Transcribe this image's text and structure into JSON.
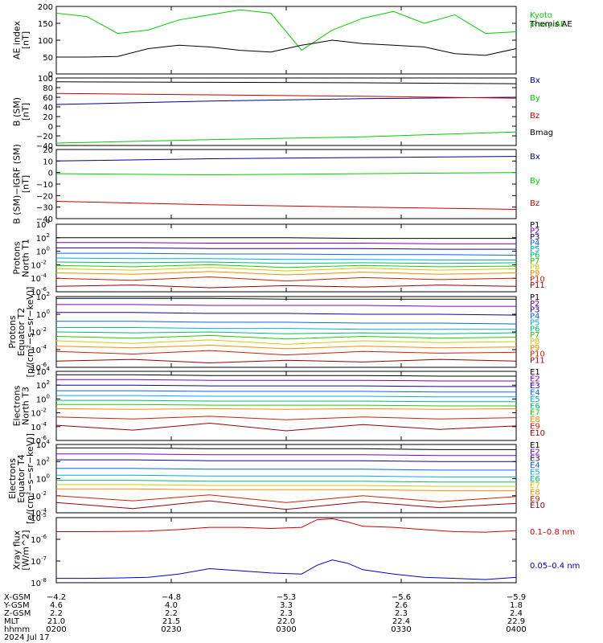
{
  "chart_data": [
    {
      "panel": "ae-index",
      "type": "line",
      "ylabel": [
        "AE index",
        "[nT]"
      ],
      "ylim": [
        0,
        200
      ],
      "yticks": [
        0,
        50,
        100,
        150,
        200
      ],
      "x": [
        0,
        4,
        8,
        12,
        16,
        20,
        24,
        28,
        32,
        36,
        40,
        44,
        48,
        52,
        56,
        60
      ],
      "series": [
        {
          "name": "Kyoto proxy AE",
          "color": "#00cc00",
          "values": [
            180,
            170,
            120,
            130,
            160,
            175,
            190,
            180,
            70,
            130,
            165,
            185,
            150,
            175,
            120,
            125
          ]
        },
        {
          "name": "Themis AE",
          "color": "#000000",
          "values": [
            50,
            50,
            52,
            75,
            85,
            80,
            70,
            65,
            85,
            100,
            90,
            85,
            80,
            60,
            55,
            75
          ]
        }
      ]
    },
    {
      "panel": "b-sm",
      "type": "line",
      "ylabel": [
        "B (SM)",
        "[nT]"
      ],
      "ylim": [
        -40,
        100
      ],
      "yticks": [
        -40,
        -20,
        0,
        20,
        40,
        60,
        80,
        100
      ],
      "ytick_labels": [
        "−40",
        "−20",
        "0",
        "20",
        "40",
        "60",
        "80",
        "100"
      ],
      "x": [
        0,
        20,
        40,
        60
      ],
      "series": [
        {
          "name": "Bx",
          "color": "#00008b",
          "values": [
            45,
            52,
            57,
            60
          ]
        },
        {
          "name": "By",
          "color": "#00cc00",
          "values": [
            -35,
            -28,
            -22,
            -12
          ]
        },
        {
          "name": "Bz",
          "color": "#cc0000",
          "values": [
            68,
            65,
            62,
            58
          ]
        },
        {
          "name": "Bmag",
          "color": "#000000",
          "values": [
            92,
            91,
            90,
            88
          ]
        }
      ]
    },
    {
      "panel": "b-sm-igrf",
      "type": "line",
      "ylabel": [
        "B (SM)−IGRF (SM)",
        "[nT]"
      ],
      "ylim": [
        -40,
        20
      ],
      "yticks": [
        -40,
        -30,
        -20,
        -10,
        0,
        10,
        20
      ],
      "ytick_labels": [
        "−40",
        "−30",
        "−20",
        "−10",
        "0",
        "10",
        "20"
      ],
      "x": [
        0,
        20,
        40,
        60
      ],
      "series": [
        {
          "name": "Bx",
          "color": "#00008b",
          "values": [
            10,
            12,
            13,
            14
          ]
        },
        {
          "name": "By",
          "color": "#00cc00",
          "values": [
            -1,
            -2,
            -1,
            0
          ]
        },
        {
          "name": "Bz",
          "color": "#cc0000",
          "values": [
            -25,
            -28,
            -30,
            -32
          ]
        }
      ]
    },
    {
      "panel": "protons-north-t1",
      "type": "line",
      "ylabel": [
        "Protons",
        "North T1"
      ],
      "yscale": "log",
      "ylim": [
        -6,
        4
      ],
      "yticks": [
        -6,
        -4,
        -2,
        0,
        2,
        4
      ],
      "x": [
        0,
        10,
        20,
        30,
        40,
        50,
        60
      ],
      "series": [
        {
          "name": "P1",
          "color": "#000000",
          "values": [
            2.0,
            2.0,
            2.0,
            2.0,
            1.9,
            1.9,
            1.9
          ]
        },
        {
          "name": "P2",
          "color": "#7f00bf",
          "values": [
            1.3,
            1.3,
            1.2,
            1.2,
            1.2,
            1.1,
            1.1
          ]
        },
        {
          "name": "P3",
          "color": "#1a0099",
          "values": [
            0.5,
            0.5,
            0.4,
            0.4,
            0.4,
            0.3,
            0.3
          ]
        },
        {
          "name": "P4",
          "color": "#0066ff",
          "values": [
            -0.3,
            -0.3,
            -0.4,
            -0.4,
            -0.5,
            -0.5,
            -0.6
          ]
        },
        {
          "name": "P5",
          "color": "#00aaee",
          "values": [
            -1.0,
            -1.1,
            -1.1,
            -1.2,
            -1.2,
            -1.3,
            -1.3
          ]
        },
        {
          "name": "P6",
          "color": "#00bb77",
          "values": [
            -1.6,
            -1.7,
            -1.6,
            -1.8,
            -1.7,
            -1.8,
            -1.7
          ]
        },
        {
          "name": "P7",
          "color": "#22cc00",
          "values": [
            -2.1,
            -2.3,
            -2.0,
            -2.4,
            -2.1,
            -2.3,
            -2.2
          ]
        },
        {
          "name": "P8",
          "color": "#cccc00",
          "values": [
            -2.6,
            -2.8,
            -2.4,
            -2.9,
            -2.5,
            -2.8,
            -2.6
          ]
        },
        {
          "name": "P9",
          "color": "#ff8800",
          "values": [
            -3.2,
            -3.4,
            -3.0,
            -3.5,
            -3.1,
            -3.4,
            -3.2
          ]
        },
        {
          "name": "P10",
          "color": "#cc2200",
          "values": [
            -4.0,
            -4.3,
            -3.8,
            -4.4,
            -3.9,
            -4.2,
            -4.0
          ]
        },
        {
          "name": "P11",
          "color": "#990000",
          "values": [
            -5.2,
            -5.0,
            -5.4,
            -5.1,
            -5.3,
            -5.0,
            -5.2
          ]
        }
      ]
    },
    {
      "panel": "protons-equator-t2",
      "type": "line",
      "ylabel": [
        "Protons",
        "Equator T2",
        "[p/(cm²−s−sr−keV)]"
      ],
      "yscale": "log",
      "ylim": [
        -6,
        2
      ],
      "yticks": [
        -6,
        -4,
        -2,
        0,
        2
      ],
      "x": [
        0,
        10,
        20,
        30,
        40,
        50,
        60
      ],
      "series": [
        {
          "name": "P1",
          "color": "#000000",
          "values": [
            1.8,
            1.8,
            1.8,
            1.7,
            1.7,
            1.7,
            1.7
          ]
        },
        {
          "name": "P2",
          "color": "#7f00bf",
          "values": [
            1.1,
            1.1,
            1.0,
            1.0,
            1.0,
            0.9,
            0.9
          ]
        },
        {
          "name": "P3",
          "color": "#1a0099",
          "values": [
            0.2,
            0.2,
            0.1,
            0.1,
            0.0,
            0.0,
            -0.1
          ]
        },
        {
          "name": "P4",
          "color": "#0066ff",
          "values": [
            -0.8,
            -0.8,
            -0.9,
            -0.9,
            -1.0,
            -1.0,
            -1.1
          ]
        },
        {
          "name": "P5",
          "color": "#00aaee",
          "values": [
            -1.5,
            -1.5,
            -1.6,
            -1.6,
            -1.7,
            -1.7,
            -1.7
          ]
        },
        {
          "name": "P6",
          "color": "#00bb77",
          "values": [
            -2.0,
            -2.1,
            -2.0,
            -2.2,
            -2.1,
            -2.2,
            -2.1
          ]
        },
        {
          "name": "P7",
          "color": "#22cc00",
          "values": [
            -2.5,
            -2.7,
            -2.4,
            -2.8,
            -2.5,
            -2.7,
            -2.6
          ]
        },
        {
          "name": "P8",
          "color": "#cccc00",
          "values": [
            -3.0,
            -3.3,
            -2.9,
            -3.4,
            -3.0,
            -3.2,
            -3.1
          ]
        },
        {
          "name": "P9",
          "color": "#ff8800",
          "values": [
            -3.6,
            -3.8,
            -3.5,
            -3.9,
            -3.6,
            -3.8,
            -3.7
          ]
        },
        {
          "name": "P10",
          "color": "#cc2200",
          "values": [
            -4.2,
            -4.5,
            -4.1,
            -4.6,
            -4.2,
            -4.4,
            -4.3
          ]
        },
        {
          "name": "P11",
          "color": "#990000",
          "values": [
            -5.3,
            -5.1,
            -5.5,
            -5.2,
            -5.4,
            -5.1,
            -5.3
          ]
        }
      ]
    },
    {
      "panel": "electrons-north-t3",
      "type": "line",
      "ylabel": [
        "Electrons",
        "North T3"
      ],
      "yscale": "log",
      "ylim": [
        -6,
        4
      ],
      "yticks": [
        -6,
        -4,
        -2,
        0,
        2,
        4
      ],
      "x": [
        0,
        10,
        20,
        30,
        40,
        50,
        60
      ],
      "series": [
        {
          "name": "E1",
          "color": "#000000",
          "values": [
            3.5,
            3.5,
            3.4,
            3.4,
            3.4,
            3.3,
            3.3
          ]
        },
        {
          "name": "E2",
          "color": "#7f00bf",
          "values": [
            2.8,
            2.8,
            2.7,
            2.7,
            2.7,
            2.6,
            2.6
          ]
        },
        {
          "name": "E3",
          "color": "#1a0099",
          "values": [
            2.0,
            2.0,
            1.9,
            1.9,
            1.9,
            1.8,
            1.8
          ]
        },
        {
          "name": "E4",
          "color": "#0066ff",
          "values": [
            1.2,
            1.2,
            1.1,
            1.1,
            1.1,
            1.0,
            1.0
          ]
        },
        {
          "name": "E5",
          "color": "#00aaee",
          "values": [
            0.5,
            0.5,
            0.4,
            0.4,
            0.4,
            0.3,
            0.3
          ]
        },
        {
          "name": "E6",
          "color": "#00bb77",
          "values": [
            -0.2,
            -0.2,
            -0.3,
            -0.3,
            -0.3,
            -0.4,
            -0.4
          ]
        },
        {
          "name": "E7",
          "color": "#22cc00",
          "values": [
            -0.8,
            -0.8,
            -0.9,
            -0.9,
            -0.9,
            -1.0,
            -1.0
          ]
        },
        {
          "name": "E8",
          "color": "#ff8800",
          "values": [
            -1.4,
            -1.5,
            -1.4,
            -1.5,
            -1.4,
            -1.5,
            -1.4
          ]
        },
        {
          "name": "E9",
          "color": "#cc2200",
          "values": [
            -2.6,
            -2.9,
            -2.5,
            -3.0,
            -2.6,
            -2.9,
            -2.7
          ]
        },
        {
          "name": "E10",
          "color": "#990000",
          "values": [
            -3.8,
            -4.5,
            -3.5,
            -4.6,
            -3.7,
            -4.4,
            -3.9
          ]
        }
      ]
    },
    {
      "panel": "electrons-equator-t4",
      "type": "line",
      "ylabel": [
        "Electrons",
        "Equator T4",
        "[e/(cm²−s−sr−keV)]"
      ],
      "yscale": "log",
      "ylim": [
        -4,
        4
      ],
      "yticks": [
        -4,
        -2,
        0,
        2,
        4
      ],
      "x": [
        0,
        10,
        20,
        30,
        40,
        50,
        60
      ],
      "series": [
        {
          "name": "E1",
          "color": "#000000",
          "values": [
            3.6,
            3.6,
            3.5,
            3.5,
            3.5,
            3.4,
            3.4
          ]
        },
        {
          "name": "E2",
          "color": "#7f00bf",
          "values": [
            2.9,
            2.9,
            2.8,
            2.8,
            2.8,
            2.7,
            2.7
          ]
        },
        {
          "name": "E3",
          "color": "#1a0099",
          "values": [
            2.2,
            2.2,
            2.1,
            2.1,
            2.1,
            2.0,
            2.0
          ]
        },
        {
          "name": "E4",
          "color": "#0066ff",
          "values": [
            1.2,
            1.2,
            1.1,
            1.1,
            1.1,
            1.0,
            1.0
          ]
        },
        {
          "name": "E5",
          "color": "#00aaee",
          "values": [
            0.4,
            0.4,
            0.3,
            0.3,
            0.3,
            0.2,
            0.2
          ]
        },
        {
          "name": "E6",
          "color": "#00bb77",
          "values": [
            -0.2,
            -0.2,
            -0.3,
            -0.3,
            -0.3,
            -0.4,
            -0.4
          ]
        },
        {
          "name": "E7",
          "color": "#cccc00",
          "values": [
            -0.7,
            -0.7,
            -0.8,
            -0.8,
            -0.8,
            -0.9,
            -0.9
          ]
        },
        {
          "name": "E8",
          "color": "#ff8800",
          "values": [
            -1.2,
            -1.2,
            -1.3,
            -1.3,
            -1.3,
            -1.4,
            -1.4
          ]
        },
        {
          "name": "E9",
          "color": "#cc2200",
          "values": [
            -2.0,
            -2.6,
            -1.9,
            -2.8,
            -2.0,
            -2.7,
            -2.1
          ]
        },
        {
          "name": "E10",
          "color": "#990000",
          "values": [
            -2.8,
            -3.5,
            -2.6,
            -3.6,
            -2.7,
            -3.4,
            -2.9
          ]
        }
      ]
    },
    {
      "panel": "xray-flux",
      "type": "line",
      "ylabel": [
        "Xray flux",
        "[W/m^2]"
      ],
      "yscale": "log",
      "ylim": [
        -8,
        -5
      ],
      "yticks": [
        -8,
        -7,
        -6,
        -5
      ],
      "x": [
        0,
        4,
        8,
        12,
        16,
        20,
        24,
        28,
        32,
        34,
        36,
        38,
        40,
        44,
        48,
        52,
        56,
        60
      ],
      "series": [
        {
          "name": "0.1–0.8 nm",
          "color": "#cc0000",
          "values": [
            -5.65,
            -5.65,
            -5.64,
            -5.62,
            -5.55,
            -5.45,
            -5.45,
            -5.5,
            -5.45,
            -5.1,
            -5.05,
            -5.2,
            -5.4,
            -5.45,
            -5.55,
            -5.65,
            -5.67,
            -5.6
          ]
        },
        {
          "name": "0.05–0.4 nm",
          "color": "#0000cc",
          "values": [
            -7.8,
            -7.8,
            -7.78,
            -7.75,
            -7.6,
            -7.35,
            -7.45,
            -7.55,
            -7.6,
            -7.2,
            -6.95,
            -7.1,
            -7.4,
            -7.6,
            -7.75,
            -7.8,
            -7.85,
            -7.75
          ]
        }
      ]
    }
  ],
  "x_axis": {
    "xlim": [
      0,
      60
    ],
    "tick_positions": [
      0,
      15,
      30,
      45,
      60
    ],
    "rows": [
      {
        "label": "X-GSM",
        "values": [
          "−4.2",
          "−4.8",
          "−5.3",
          "−5.6",
          "−5.9"
        ]
      },
      {
        "label": "Y-GSM",
        "values": [
          "4.6",
          "4.0",
          "3.3",
          "2.6",
          "1.8"
        ]
      },
      {
        "label": "Z-GSM",
        "values": [
          "2.2",
          "2.2",
          "2.3",
          "2.3",
          "2.4"
        ]
      },
      {
        "label": "MLT",
        "values": [
          "21.0",
          "21.5",
          "22.0",
          "22.4",
          "22.9"
        ]
      },
      {
        "label": "hhmm",
        "values": [
          "0200",
          "0230",
          "0300",
          "0330",
          "0400"
        ]
      }
    ],
    "date": "2024 Jul 17"
  }
}
